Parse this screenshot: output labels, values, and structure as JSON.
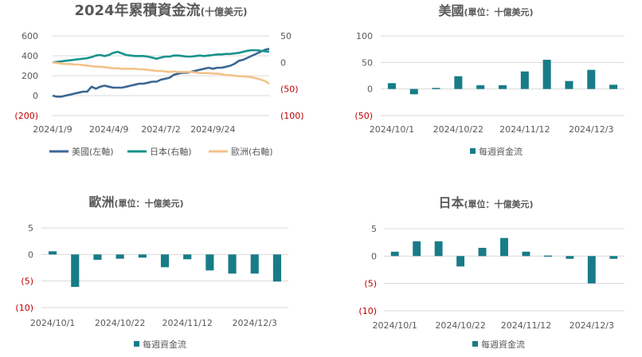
{
  "colors": {
    "us": "#3a6792",
    "japan": "#17938c",
    "europe": "#f2c38a",
    "bar": "#177c88",
    "neg_label": "#c00000",
    "text": "#595959",
    "grid": "#d9d9d9"
  },
  "chart_data": [
    {
      "id": "cumulative",
      "type": "line",
      "title": "2024年累積資金流",
      "title_unit": "(十億美元)",
      "x_ticks": [
        "2024/1/9",
        "2024/4/9",
        "2024/7/2",
        "2024/9/24"
      ],
      "y_left": {
        "range": [
          -200,
          600
        ],
        "ticks": [
          600,
          400,
          200,
          0,
          -200
        ],
        "tick_labels": [
          "600",
          "400",
          "200",
          "0",
          "(200)"
        ]
      },
      "y_right": {
        "range": [
          -100,
          50
        ],
        "ticks": [
          50,
          0,
          -50,
          -100
        ],
        "tick_labels": [
          "50",
          "0",
          "(50)",
          "(100)"
        ]
      },
      "num_points": 51,
      "x_tick_indexes": [
        0,
        13,
        25,
        37
      ],
      "series": [
        {
          "name": "美國(左軸)",
          "axis": "left",
          "color_key": "us",
          "values": [
            0,
            -10,
            -10,
            0,
            10,
            20,
            30,
            40,
            40,
            90,
            70,
            90,
            100,
            90,
            80,
            80,
            80,
            90,
            100,
            110,
            120,
            120,
            130,
            140,
            140,
            160,
            170,
            180,
            210,
            220,
            230,
            230,
            240,
            250,
            260,
            270,
            280,
            270,
            280,
            280,
            290,
            300,
            320,
            350,
            360,
            380,
            400,
            420,
            440,
            460,
            470
          ]
        },
        {
          "name": "日本(右軸)",
          "axis": "right",
          "color_key": "japan",
          "values": [
            0,
            1,
            2,
            3,
            4,
            5,
            6,
            7,
            8,
            10,
            13,
            14,
            12,
            14,
            18,
            20,
            17,
            14,
            13,
            12,
            12,
            12,
            11,
            9,
            7,
            9,
            11,
            11,
            13,
            13,
            12,
            11,
            11,
            12,
            13,
            12,
            13,
            14,
            15,
            15,
            16,
            16,
            17,
            18,
            20,
            22,
            23,
            23,
            22,
            21,
            20
          ]
        },
        {
          "name": "歐洲(右軸)",
          "axis": "right",
          "color_key": "europe",
          "values": [
            0,
            -1,
            -2,
            -3,
            -3,
            -4,
            -4,
            -5,
            -6,
            -7,
            -8,
            -8,
            -9,
            -10,
            -11,
            -11,
            -12,
            -12,
            -12,
            -12,
            -13,
            -13,
            -14,
            -15,
            -16,
            -16,
            -17,
            -18,
            -17,
            -18,
            -18,
            -18,
            -18,
            -19,
            -20,
            -20,
            -20,
            -21,
            -21,
            -22,
            -24,
            -24,
            -25,
            -26,
            -26,
            -27,
            -28,
            -30,
            -32,
            -35,
            -40
          ]
        }
      ]
    },
    {
      "id": "us_weekly",
      "type": "bar",
      "title": "美國",
      "title_unit": "(單位：十億美元)",
      "legend": "每週資金流",
      "y_range": [
        -50,
        100
      ],
      "y_ticks": [
        100,
        50,
        0,
        -50
      ],
      "y_tick_labels": [
        "100",
        "50",
        "0",
        "(50)"
      ],
      "categories": [
        "2024/10/1",
        "2024/10/8",
        "2024/10/15",
        "2024/10/22",
        "2024/10/29",
        "2024/11/5",
        "2024/11/12",
        "2024/11/19",
        "2024/11/26",
        "2024/12/3",
        "2024/12/10"
      ],
      "x_ticks": [
        "2024/10/1",
        "2024/10/22",
        "2024/11/12",
        "2024/12/3"
      ],
      "values": [
        11,
        -10,
        2,
        24,
        7,
        7,
        33,
        55,
        15,
        36,
        8
      ]
    },
    {
      "id": "europe_weekly",
      "type": "bar",
      "title": "歐洲",
      "title_unit": "(單位：十億美元)",
      "legend": "每週資金流",
      "y_range": [
        -10,
        5
      ],
      "y_ticks": [
        5,
        0,
        -5,
        -10
      ],
      "y_tick_labels": [
        "5",
        "0",
        "(5)",
        "(10)"
      ],
      "categories": [
        "2024/10/1",
        "2024/10/8",
        "2024/10/15",
        "2024/10/22",
        "2024/10/29",
        "2024/11/5",
        "2024/11/12",
        "2024/11/19",
        "2024/11/26",
        "2024/12/3",
        "2024/12/10"
      ],
      "x_ticks": [
        "2024/10/1",
        "2024/10/22",
        "2024/11/12",
        "2024/12/3"
      ],
      "values": [
        0.6,
        -6.1,
        -1.0,
        -0.8,
        -0.6,
        -2.4,
        -0.9,
        -3.0,
        -3.6,
        -3.6,
        -5.1
      ]
    },
    {
      "id": "japan_weekly",
      "type": "bar",
      "title": "日本",
      "title_unit": "(單位：十億美元)",
      "legend": "每週資金流",
      "y_range": [
        -10,
        5
      ],
      "y_ticks": [
        5,
        0,
        -5,
        -10
      ],
      "y_tick_labels": [
        "5",
        "0",
        "(5)",
        "(10)"
      ],
      "categories": [
        "2024/10/1",
        "2024/10/8",
        "2024/10/15",
        "2024/10/22",
        "2024/10/29",
        "2024/11/5",
        "2024/11/12",
        "2024/11/19",
        "2024/11/26",
        "2024/12/3",
        "2024/12/10"
      ],
      "x_ticks": [
        "2024/10/1",
        "2024/10/22",
        "2024/11/12",
        "2024/12/3"
      ],
      "values": [
        0.8,
        2.7,
        2.7,
        -1.9,
        1.5,
        3.3,
        0.8,
        0.1,
        -0.5,
        -5.0,
        -0.5
      ]
    }
  ]
}
